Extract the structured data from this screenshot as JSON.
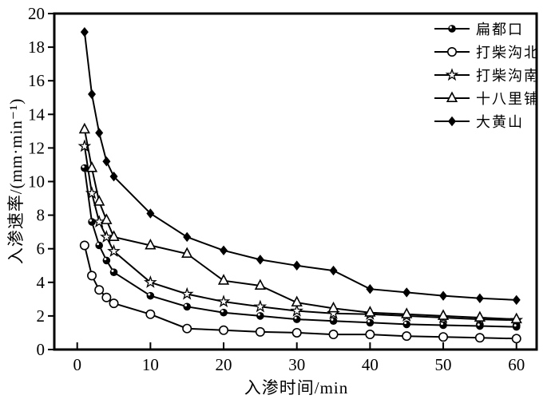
{
  "figure": {
    "background": "#ffffff",
    "ink_color": "#000000"
  },
  "chart_data": {
    "type": "line",
    "title": "",
    "xlabel": "入渗时间/min",
    "ylabel": "入渗速率/(mm·min⁻¹)",
    "xlim": [
      0,
      60
    ],
    "ylim": [
      0,
      20
    ],
    "x_ticks": [
      0,
      10,
      20,
      30,
      40,
      50,
      60
    ],
    "y_ticks": [
      0,
      2,
      4,
      6,
      8,
      10,
      12,
      14,
      16,
      18,
      20
    ],
    "grid": false,
    "legend_position": "top-right-inside",
    "x": [
      1,
      2,
      3,
      4,
      5,
      10,
      15,
      20,
      25,
      30,
      35,
      40,
      45,
      50,
      55,
      60
    ],
    "series": [
      {
        "name": "扁都口",
        "marker": "sphere-filled",
        "color": "#000000",
        "values": [
          10.8,
          7.6,
          6.2,
          5.3,
          4.6,
          3.2,
          2.55,
          2.2,
          2.0,
          1.8,
          1.7,
          1.6,
          1.5,
          1.45,
          1.4,
          1.35
        ]
      },
      {
        "name": "打柴沟北",
        "marker": "circle-open",
        "color": "#000000",
        "values": [
          6.2,
          4.4,
          3.55,
          3.1,
          2.75,
          2.1,
          1.25,
          1.15,
          1.05,
          1.0,
          0.9,
          0.9,
          0.8,
          0.75,
          0.7,
          0.65
        ]
      },
      {
        "name": "打柴沟南",
        "marker": "star-open",
        "color": "#000000",
        "values": [
          12.1,
          9.3,
          7.6,
          6.7,
          5.85,
          4.0,
          3.3,
          2.85,
          2.55,
          2.3,
          2.15,
          2.1,
          2.0,
          1.9,
          1.8,
          1.75
        ]
      },
      {
        "name": "十八里铺",
        "marker": "triangle-open",
        "color": "#000000",
        "values": [
          13.1,
          10.8,
          8.8,
          7.7,
          6.7,
          6.2,
          5.7,
          4.1,
          3.8,
          2.8,
          2.45,
          2.2,
          2.1,
          2.0,
          1.9,
          1.8
        ]
      },
      {
        "name": "大黄山",
        "marker": "diamond-filled",
        "color": "#000000",
        "values": [
          18.9,
          15.2,
          12.9,
          11.2,
          10.3,
          8.1,
          6.7,
          5.9,
          5.35,
          5.0,
          4.7,
          3.6,
          3.4,
          3.2,
          3.05,
          2.95
        ]
      }
    ]
  }
}
